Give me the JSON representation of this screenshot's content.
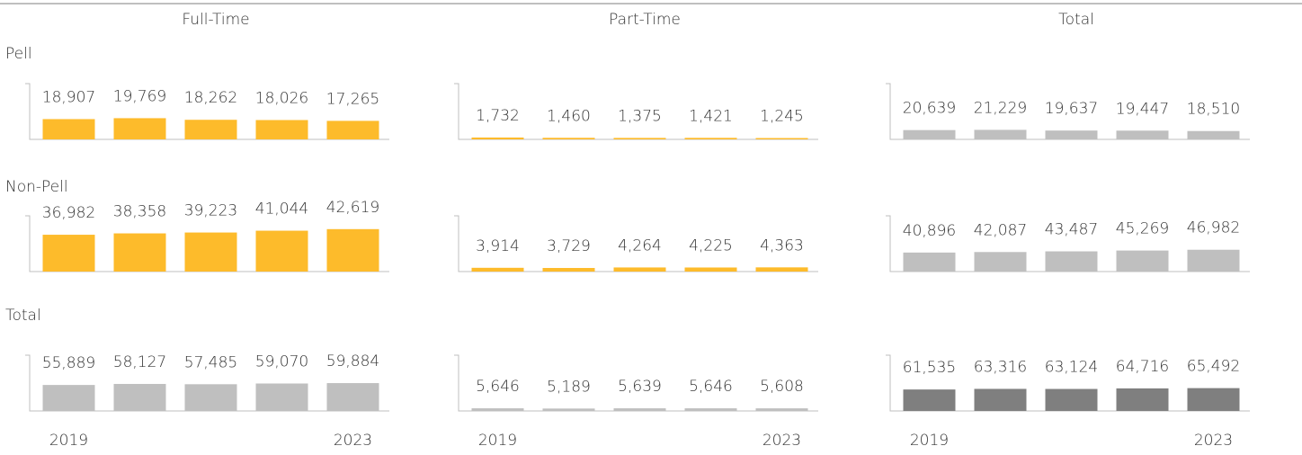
{
  "chart_data": {
    "type": "bar",
    "columns": [
      "Full-Time",
      "Part-Time",
      "Total"
    ],
    "categories": [
      "2019",
      null,
      null,
      null,
      "2023"
    ],
    "rows": [
      {
        "name": "Pell",
        "panels": [
          {
            "values": [
              18907,
              19769,
              18262,
              18026,
              17265
            ],
            "value_labels": [
              "18,907",
              "19,769",
              "18,262",
              "18,026",
              "17,265"
            ],
            "color": "#fdbb2b",
            "ylim": [
              0,
              52000
            ]
          },
          {
            "values": [
              1732,
              1460,
              1375,
              1421,
              1245
            ],
            "value_labels": [
              "1,732",
              "1,460",
              "1,375",
              "1,421",
              "1,245"
            ],
            "color": "#fdbb2b",
            "ylim": [
              0,
              52000
            ]
          },
          {
            "values": [
              20639,
              21229,
              19637,
              19447,
              18510
            ],
            "value_labels": [
              "20,639",
              "21,229",
              "19,637",
              "19,447",
              "18,510"
            ],
            "color": "#bfbfbf",
            "ylim": [
              0,
              124000
            ]
          }
        ]
      },
      {
        "name": "Non-Pell",
        "panels": [
          {
            "values": [
              36982,
              38358,
              39223,
              41044,
              42619
            ],
            "value_labels": [
              "36,982",
              "38,358",
              "39,223",
              "41,044",
              "42,619"
            ],
            "color": "#fdbb2b",
            "ylim": [
              0,
              56000
            ]
          },
          {
            "values": [
              3914,
              3729,
              4264,
              4225,
              4363
            ],
            "value_labels": [
              "3,914",
              "3,729",
              "4,264",
              "4,225",
              "4,363"
            ],
            "color": "#fdbb2b",
            "ylim": [
              0,
              58000
            ]
          },
          {
            "values": [
              40896,
              42087,
              43487,
              45269,
              46982
            ],
            "value_labels": [
              "40,896",
              "42,087",
              "43,487",
              "45,269",
              "46,982"
            ],
            "color": "#bfbfbf",
            "ylim": [
              0,
              120000
            ]
          }
        ]
      },
      {
        "name": "Total",
        "panels": [
          {
            "values": [
              55889,
              58127,
              57485,
              59070,
              59884
            ],
            "value_labels": [
              "55,889",
              "58,127",
              "57,485",
              "59,070",
              "59,884"
            ],
            "color": "#bfbfbf",
            "ylim": [
              0,
              120000
            ]
          },
          {
            "values": [
              5646,
              5189,
              5639,
              5646,
              5608
            ],
            "value_labels": [
              "5,646",
              "5,189",
              "5,639",
              "5,646",
              "5,608"
            ],
            "color": "#bfbfbf",
            "ylim": [
              0,
              120000
            ]
          },
          {
            "values": [
              61535,
              63316,
              63124,
              64716,
              65492
            ],
            "value_labels": [
              "61,535",
              "63,316",
              "63,124",
              "64,716",
              "65,492"
            ],
            "color": "#7f7f7f",
            "ylim": [
              0,
              160000
            ]
          }
        ]
      }
    ]
  }
}
